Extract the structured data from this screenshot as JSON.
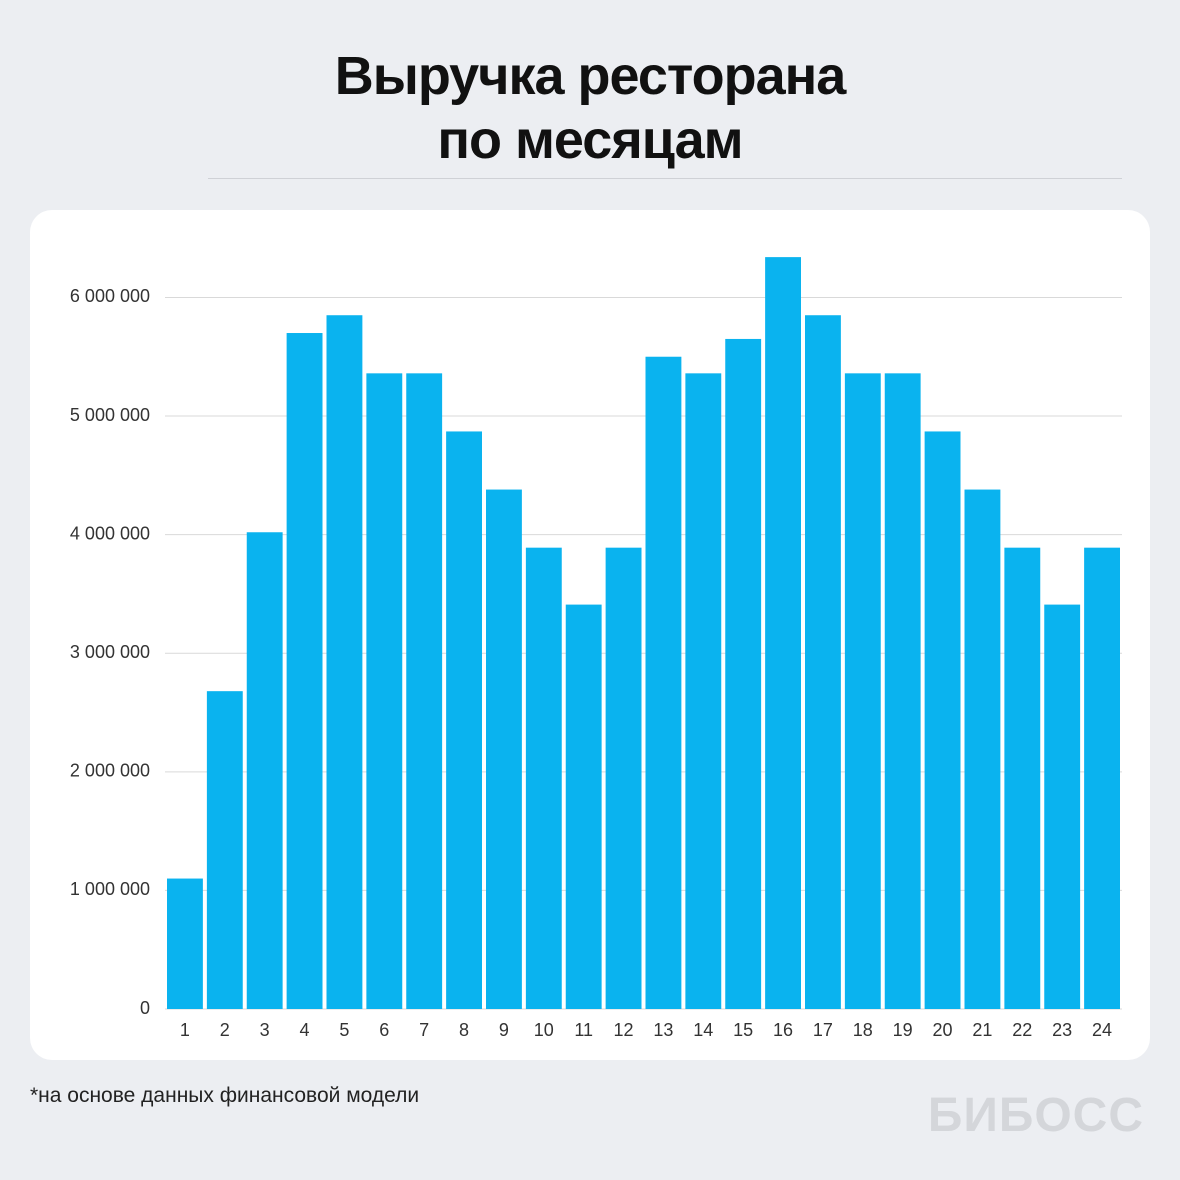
{
  "chart_data": {
    "type": "bar",
    "title": "Выручка ресторана по месяцам",
    "footnote": "*на основе данных финансовой модели",
    "brand": "БИБОСС",
    "categories": [
      "1",
      "2",
      "3",
      "4",
      "5",
      "6",
      "7",
      "8",
      "9",
      "10",
      "11",
      "12",
      "13",
      "14",
      "15",
      "16",
      "17",
      "18",
      "19",
      "20",
      "21",
      "22",
      "23",
      "24"
    ],
    "values": [
      1100000,
      2680000,
      4020000,
      5700000,
      5850000,
      5360000,
      5360000,
      4870000,
      4380000,
      3890000,
      3410000,
      3890000,
      5500000,
      5360000,
      5650000,
      6340000,
      5850000,
      5360000,
      5360000,
      4870000,
      4380000,
      3890000,
      3410000,
      3890000
    ],
    "color": "#0ab3ef",
    "ylim": [
      0,
      6400000
    ],
    "yticks": [
      0,
      {
        "value": 1000000,
        "label": "1 000 000"
      },
      {
        "value": 2000000,
        "label": "2 000 000"
      },
      {
        "value": 3000000,
        "label": "3 000 000"
      },
      {
        "value": 4000000,
        "label": "4 000 000"
      },
      {
        "value": 5000000,
        "label": "5 000 000"
      },
      {
        "value": 6000000,
        "label": "6 000 000"
      }
    ],
    "grid": true
  }
}
